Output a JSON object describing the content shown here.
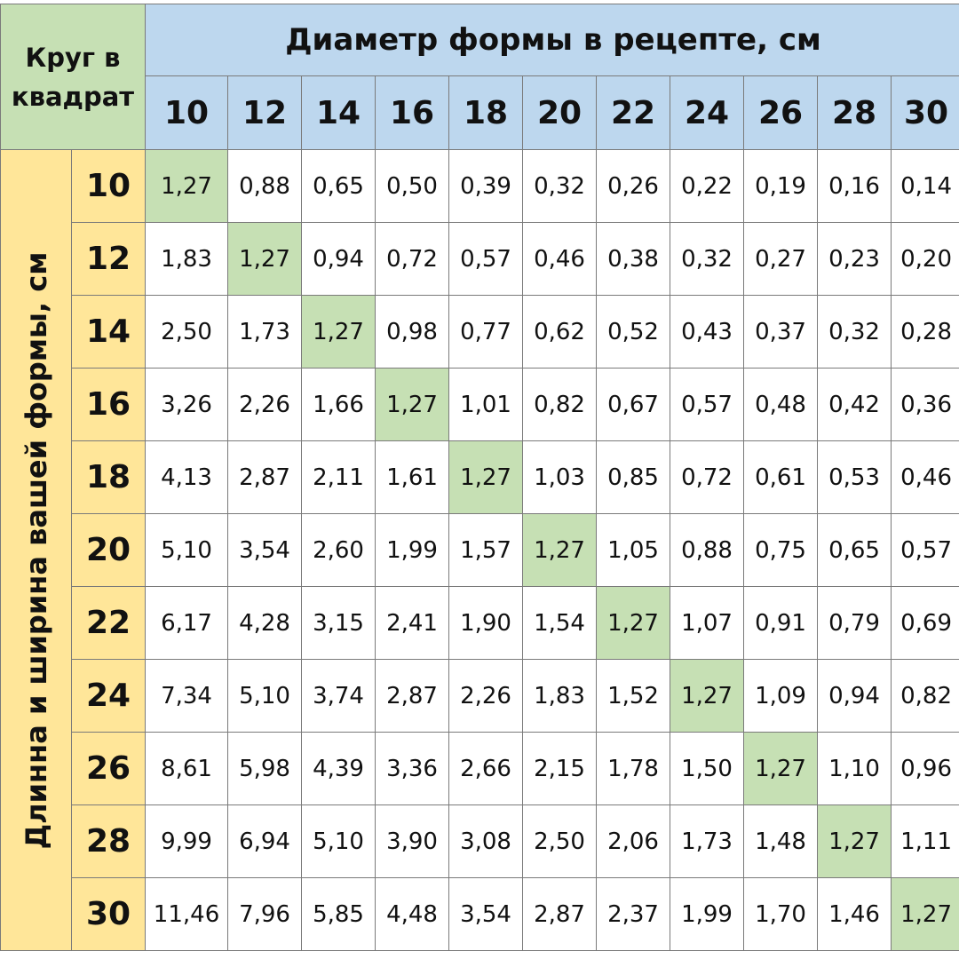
{
  "corner_label": [
    "Круг в",
    "квадрат"
  ],
  "column_title": "Диаметр формы в рецепте, см",
  "row_title": "Длинна и ширина вашей формы, см",
  "columns": [
    "10",
    "12",
    "14",
    "16",
    "18",
    "20",
    "22",
    "24",
    "26",
    "28",
    "30"
  ],
  "rows": [
    {
      "label": "10",
      "values": [
        "1,27",
        "0,88",
        "0,65",
        "0,50",
        "0,39",
        "0,32",
        "0,26",
        "0,22",
        "0,19",
        "0,16",
        "0,14"
      ]
    },
    {
      "label": "12",
      "values": [
        "1,83",
        "1,27",
        "0,94",
        "0,72",
        "0,57",
        "0,46",
        "0,38",
        "0,32",
        "0,27",
        "0,23",
        "0,20"
      ]
    },
    {
      "label": "14",
      "values": [
        "2,50",
        "1,73",
        "1,27",
        "0,98",
        "0,77",
        "0,62",
        "0,52",
        "0,43",
        "0,37",
        "0,32",
        "0,28"
      ]
    },
    {
      "label": "16",
      "values": [
        "3,26",
        "2,26",
        "1,66",
        "1,27",
        "1,01",
        "0,82",
        "0,67",
        "0,57",
        "0,48",
        "0,42",
        "0,36"
      ]
    },
    {
      "label": "18",
      "values": [
        "4,13",
        "2,87",
        "2,11",
        "1,61",
        "1,27",
        "1,03",
        "0,85",
        "0,72",
        "0,61",
        "0,53",
        "0,46"
      ]
    },
    {
      "label": "20",
      "values": [
        "5,10",
        "3,54",
        "2,60",
        "1,99",
        "1,57",
        "1,27",
        "1,05",
        "0,88",
        "0,75",
        "0,65",
        "0,57"
      ]
    },
    {
      "label": "22",
      "values": [
        "6,17",
        "4,28",
        "3,15",
        "2,41",
        "1,90",
        "1,54",
        "1,27",
        "1,07",
        "0,91",
        "0,79",
        "0,69"
      ]
    },
    {
      "label": "24",
      "values": [
        "7,34",
        "5,10",
        "3,74",
        "2,87",
        "2,26",
        "1,83",
        "1,52",
        "1,27",
        "1,09",
        "0,94",
        "0,82"
      ]
    },
    {
      "label": "26",
      "values": [
        "8,61",
        "5,98",
        "4,39",
        "3,36",
        "2,66",
        "2,15",
        "1,78",
        "1,50",
        "1,27",
        "1,10",
        "0,96"
      ]
    },
    {
      "label": "28",
      "values": [
        "9,99",
        "6,94",
        "5,10",
        "3,90",
        "3,08",
        "2,50",
        "2,06",
        "1,73",
        "1,48",
        "1,27",
        "1,11"
      ]
    },
    {
      "label": "30",
      "values": [
        "11,46",
        "7,96",
        "5,85",
        "4,48",
        "3,54",
        "2,87",
        "2,37",
        "1,99",
        "1,70",
        "1,46",
        "1,27"
      ]
    }
  ],
  "colors": {
    "corner_bg": "#c6e0b4",
    "column_header_bg": "#bdd7ee",
    "row_header_bg": "#ffe699",
    "diagonal_bg": "#c6e0b4",
    "grid_line": "#7a7a7a"
  }
}
